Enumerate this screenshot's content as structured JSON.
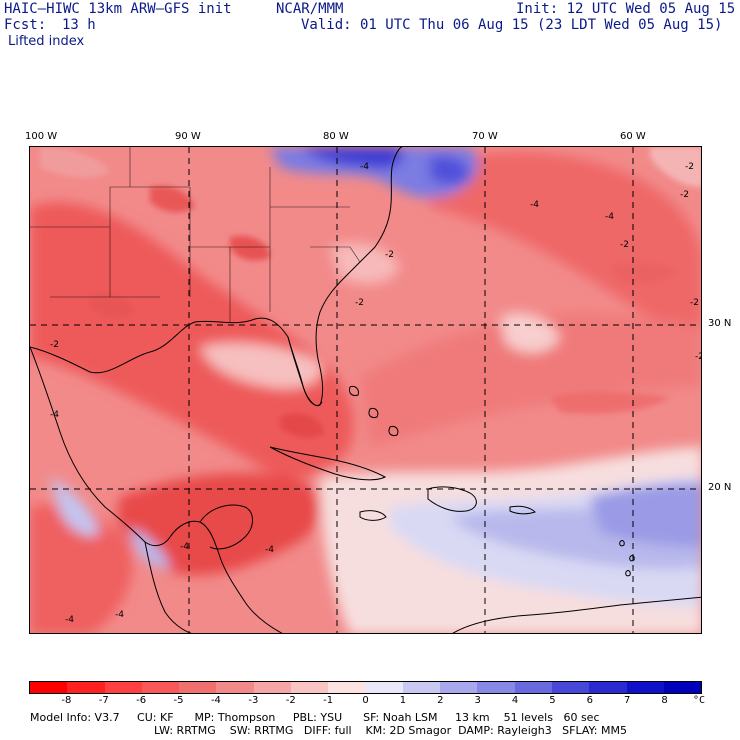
{
  "header": {
    "model_title": "HAIC–HIWC 13km ARW–GFS init",
    "org": "NCAR/MMM",
    "init": "Init: 12 UTC Wed 05 Aug 15",
    "fcst_label": "Fcst:",
    "fcst_value": "13 h",
    "valid": "Valid: 01 UTC Thu 06 Aug 15 (23 LDT Wed 05 Aug 15)",
    "field": "Lifted index"
  },
  "axes": {
    "lon_labels": [
      "100 W",
      "90 W",
      "80 W",
      "70 W",
      "60 W"
    ],
    "lat_labels": [
      "30 N",
      "20 N"
    ]
  },
  "contour_labels": [
    "-2",
    "-4",
    "-2",
    "-4",
    "-2",
    "-2",
    "-2",
    "-2",
    "-4",
    "-2",
    "-4",
    "-4",
    "-4",
    "-2",
    "-4",
    "-4"
  ],
  "colorbar": {
    "unit": "°C",
    "ticks": [
      "-8",
      "-7",
      "-6",
      "-5",
      "-4",
      "-3",
      "-2",
      "-1",
      "0",
      "1",
      "2",
      "3",
      "4",
      "5",
      "6",
      "7",
      "8"
    ],
    "colors": [
      "#ff0000",
      "#ff2020",
      "#ff4040",
      "#f85858",
      "#f07070",
      "#f38a8a",
      "#f6a6a6",
      "#f9c4c4",
      "#fde2e2",
      "#e8e8fa",
      "#c8c8f2",
      "#a8a8ec",
      "#8888e6",
      "#6a6ae0",
      "#4848d8",
      "#2a2ad0",
      "#1010c8",
      "#0000bb"
    ]
  },
  "model_info": {
    "line1": "Model Info: V3.7     CU: KF      MP: Thompson     PBL: YSU      SF: Noah LSM     13 km    51 levels   60 sec",
    "line2": "LW: RRTMG    SW: RRTMG   DIFF: full    KM: 2D Smagor  DAMP: Rayleigh3   SFLAY: MM5"
  }
}
